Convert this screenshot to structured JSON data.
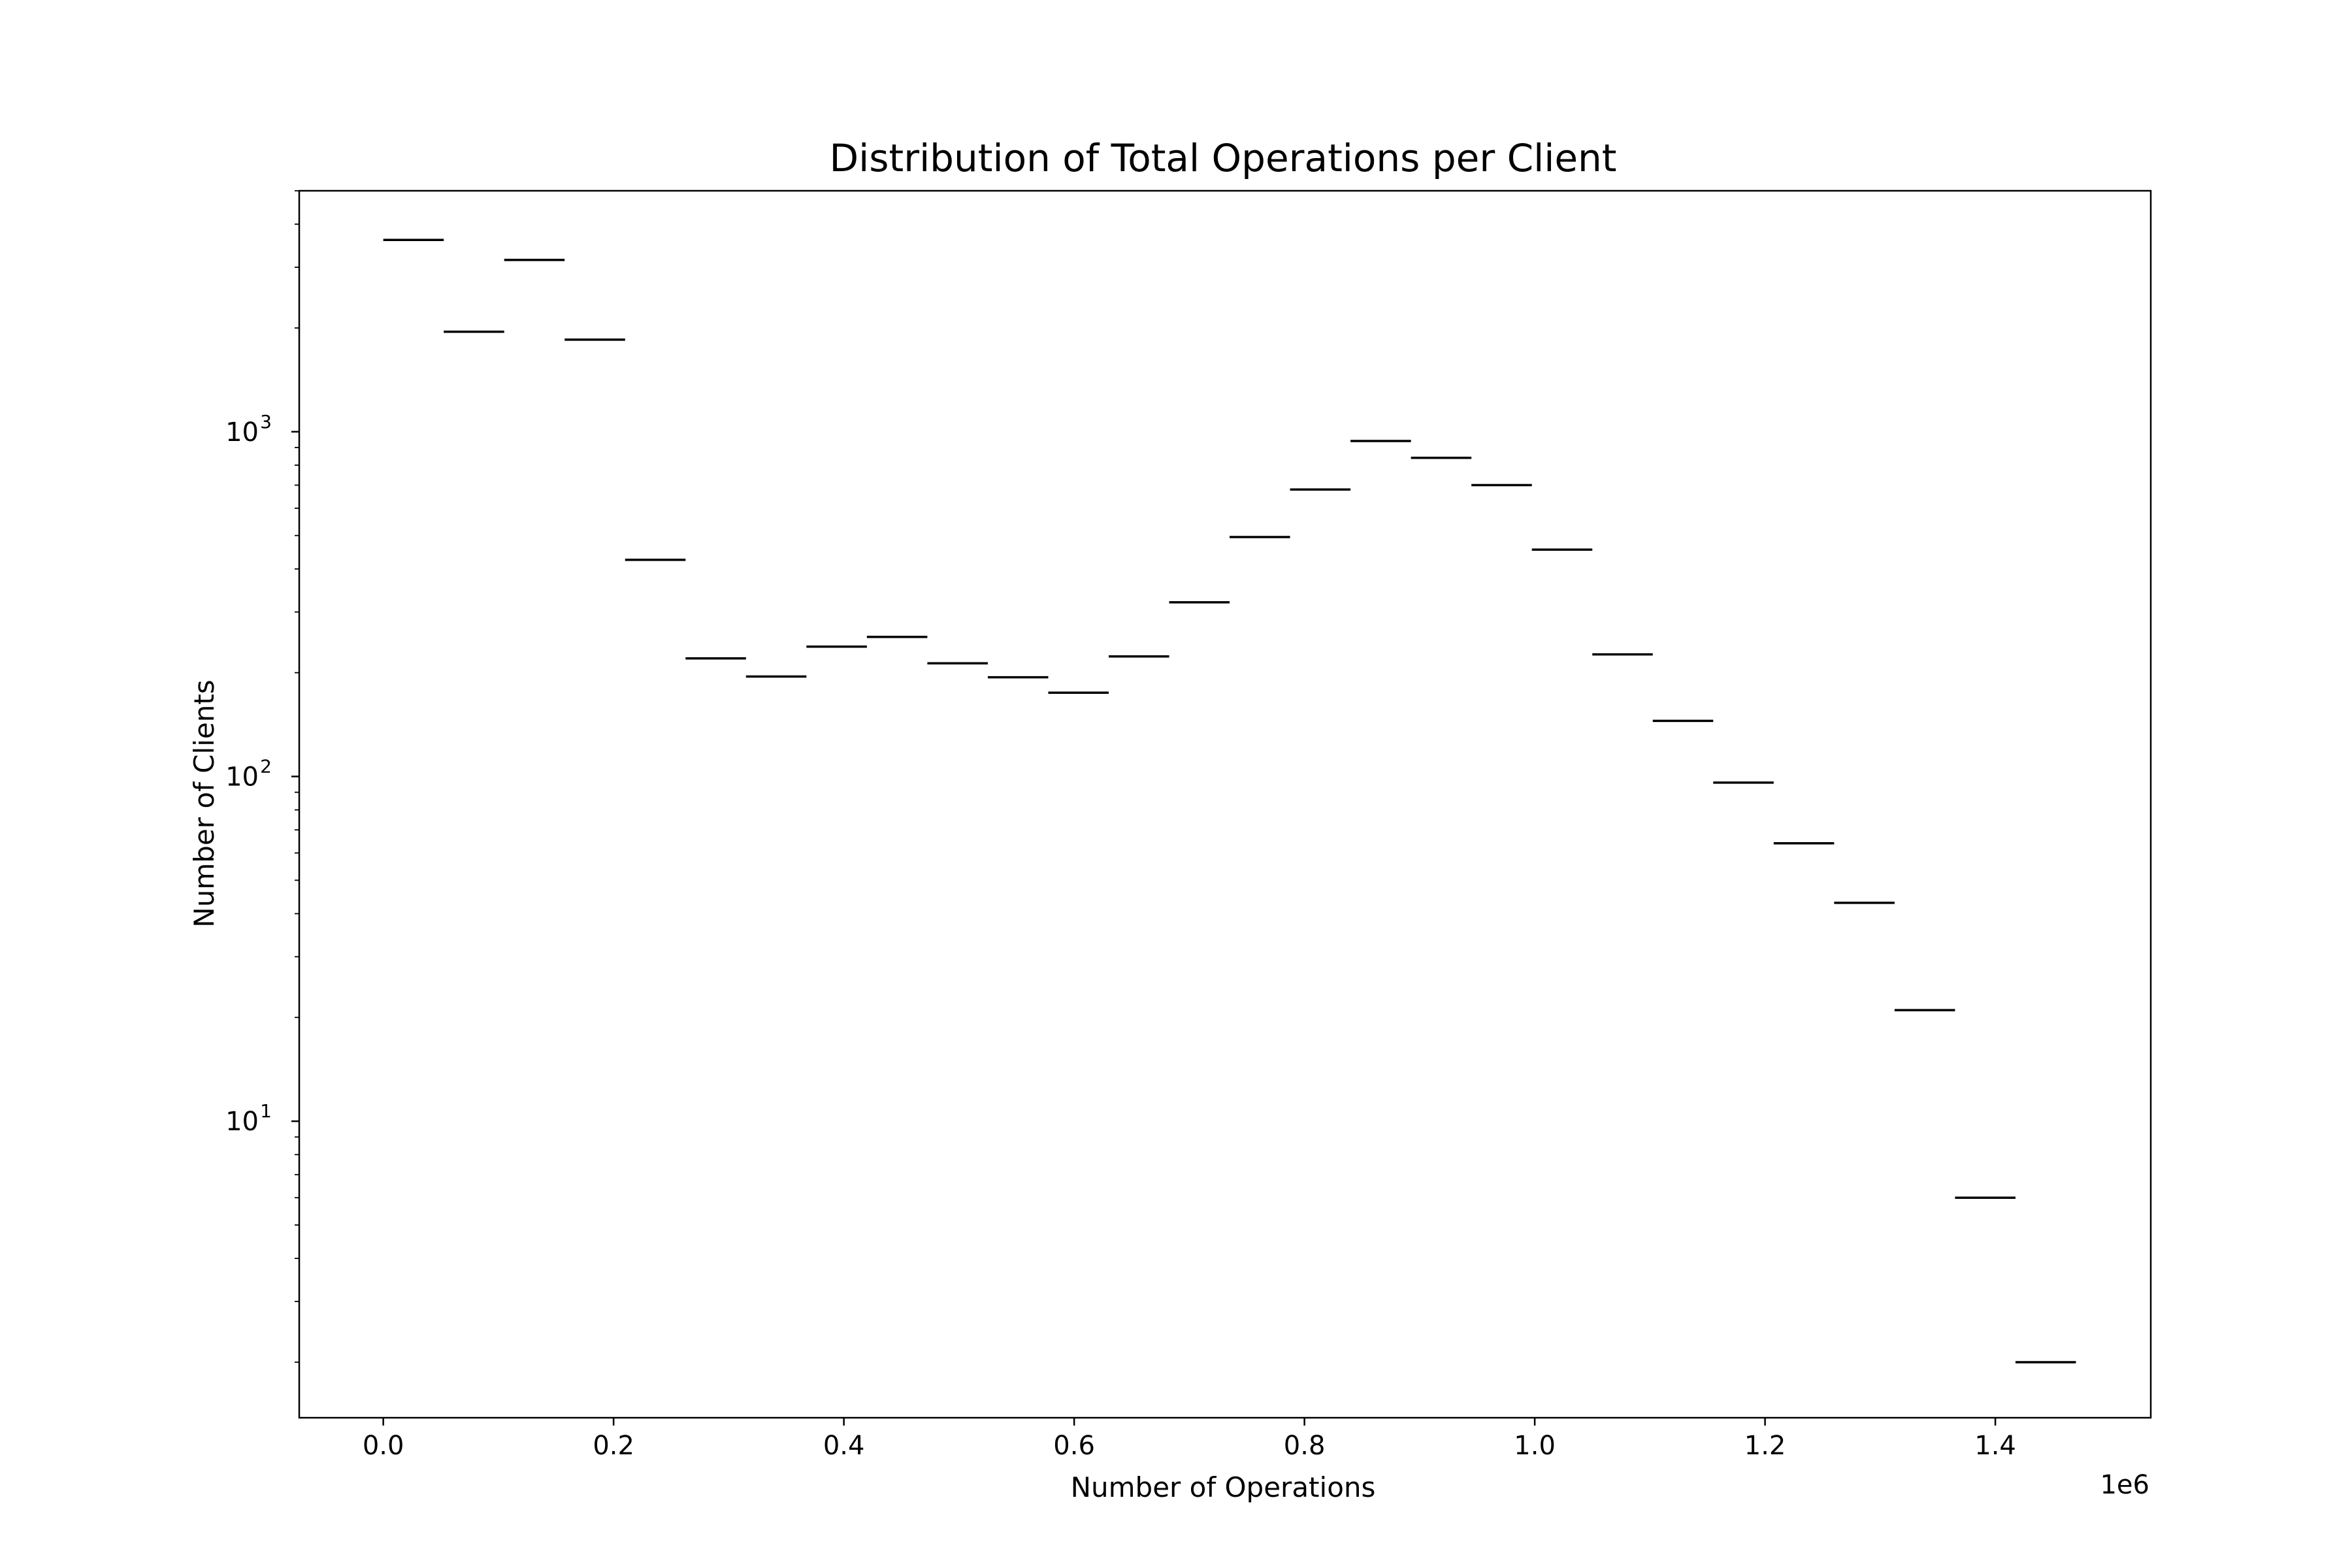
{
  "chart_data": {
    "type": "histogram",
    "title": "Distribution of Total Operations per Client",
    "xlabel": "Number of Operations",
    "ylabel": "Number of Clients",
    "x_offset_label": "1e6",
    "y_scale": "log",
    "xlim": [
      -0.073,
      1.535
    ],
    "ylim": [
      1.38,
      5000
    ],
    "grid": false,
    "legend": "none",
    "histtype": "step",
    "x_ticks": [
      0.0,
      0.2,
      0.4,
      0.6,
      0.8,
      1.0,
      1.2,
      1.4
    ],
    "x_tick_labels": [
      "0.0",
      "0.2",
      "0.4",
      "0.6",
      "0.8",
      "1.0",
      "1.2",
      "1.4"
    ],
    "y_ticks": [
      {
        "value": 10,
        "base": "10",
        "exponent": "1"
      },
      {
        "value": 100,
        "base": "10",
        "exponent": "2"
      },
      {
        "value": 1000,
        "base": "10",
        "exponent": "3"
      }
    ],
    "bin_width": 0.0525,
    "bins": [
      {
        "x_start": 0.0,
        "count": 3600
      },
      {
        "x_start": 0.0525,
        "count": 1950
      },
      {
        "x_start": 0.105,
        "count": 3150
      },
      {
        "x_start": 0.1575,
        "count": 1850
      },
      {
        "x_start": 0.21,
        "count": 425
      },
      {
        "x_start": 0.2625,
        "count": 220
      },
      {
        "x_start": 0.315,
        "count": 195
      },
      {
        "x_start": 0.3675,
        "count": 238
      },
      {
        "x_start": 0.42,
        "count": 254
      },
      {
        "x_start": 0.4725,
        "count": 213
      },
      {
        "x_start": 0.525,
        "count": 194
      },
      {
        "x_start": 0.5775,
        "count": 175
      },
      {
        "x_start": 0.63,
        "count": 223
      },
      {
        "x_start": 0.6825,
        "count": 320
      },
      {
        "x_start": 0.735,
        "count": 495
      },
      {
        "x_start": 0.7875,
        "count": 680
      },
      {
        "x_start": 0.84,
        "count": 940
      },
      {
        "x_start": 0.8925,
        "count": 840
      },
      {
        "x_start": 0.945,
        "count": 700
      },
      {
        "x_start": 0.9975,
        "count": 455
      },
      {
        "x_start": 1.05,
        "count": 226
      },
      {
        "x_start": 1.1025,
        "count": 145
      },
      {
        "x_start": 1.155,
        "count": 96
      },
      {
        "x_start": 1.2075,
        "count": 64
      },
      {
        "x_start": 1.26,
        "count": 43
      },
      {
        "x_start": 1.3125,
        "count": 21
      },
      {
        "x_start": 1.365,
        "count": 6
      },
      {
        "x_start": 1.4175,
        "count": 2
      }
    ]
  }
}
